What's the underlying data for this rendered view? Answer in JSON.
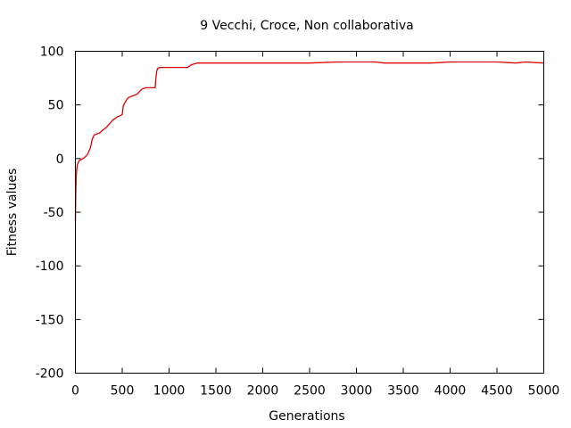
{
  "chart_data": {
    "type": "line",
    "title": "9 Vecchi, Croce, Non collaborativa",
    "xlabel": "Generations",
    "ylabel": "Fitness values",
    "xlim": [
      0,
      5000
    ],
    "ylim": [
      -200,
      100
    ],
    "x_ticks": [
      0,
      500,
      1000,
      1500,
      2000,
      2500,
      3000,
      3500,
      4000,
      4500,
      5000
    ],
    "y_ticks": [
      -200,
      -150,
      -100,
      -50,
      0,
      50,
      100
    ],
    "grid": false,
    "legend": "none",
    "series": [
      {
        "color": "#e00000",
        "x": [
          0,
          5,
          10,
          20,
          40,
          60,
          80,
          100,
          130,
          160,
          180,
          200,
          230,
          260,
          300,
          330,
          360,
          400,
          420,
          450,
          480,
          500,
          510,
          540,
          570,
          600,
          630,
          660,
          680,
          700,
          720,
          750,
          800,
          850,
          860,
          870,
          880,
          900,
          950,
          1000,
          1050,
          1100,
          1150,
          1200,
          1230,
          1260,
          1300,
          1400,
          1500,
          1700,
          2000,
          2300,
          2500,
          2800,
          3000,
          3200,
          3300,
          3500,
          3800,
          4000,
          4300,
          4500,
          4700,
          4800,
          5000
        ],
        "y": [
          -58,
          -30,
          -15,
          -6,
          -2,
          -1,
          0,
          1,
          4,
          10,
          18,
          22,
          23,
          24,
          27,
          29,
          32,
          36,
          37,
          39,
          40,
          41,
          49,
          54,
          57,
          58,
          59,
          60,
          62,
          64,
          65,
          66,
          66,
          66,
          75,
          82,
          84,
          85,
          85,
          85,
          85,
          85,
          85,
          85,
          87,
          88,
          89,
          89,
          89,
          89,
          89,
          89,
          89,
          90,
          90,
          90,
          89,
          89,
          89,
          90,
          90,
          90,
          89,
          90,
          89
        ]
      }
    ]
  }
}
